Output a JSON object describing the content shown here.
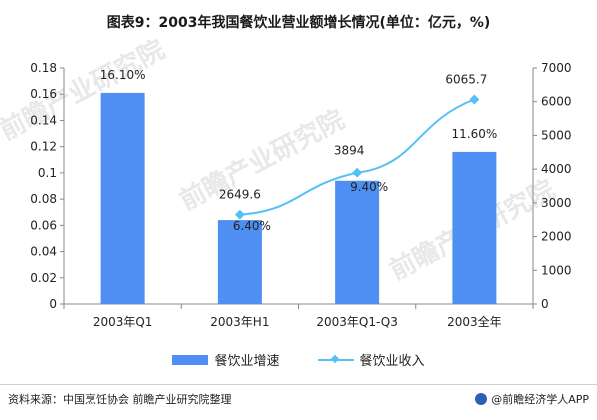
{
  "title": "图表9：2003年我国餐饮业营业额增长情况(单位：亿元，%)",
  "watermarks": [
    "前瞻产业研究院",
    "前瞻产业研究院",
    "前瞻产业研究院"
  ],
  "chart_data": {
    "type": "bar",
    "categories": [
      "2003年Q1",
      "2003年H1",
      "2003年Q1-Q3",
      "2003全年"
    ],
    "series": [
      {
        "name": "餐饮业增速",
        "type": "bar",
        "axis": "left",
        "values": [
          0.161,
          0.064,
          0.094,
          0.116
        ],
        "labels": [
          "16.10%",
          "6.40%",
          "9.40%",
          "11.60%"
        ],
        "color": "#4f8ff4"
      },
      {
        "name": "餐饮业收入",
        "type": "line",
        "axis": "right",
        "values": [
          null,
          2649.6,
          3894,
          6065.7
        ],
        "labels": [
          "",
          "2649.6",
          "3894",
          "6065.7"
        ],
        "color": "#54c1f5"
      }
    ],
    "left_axis": {
      "min": 0,
      "max": 0.18,
      "step": 0.02,
      "ticks": [
        "0",
        "0.02",
        "0.04",
        "0.06",
        "0.08",
        "0.1",
        "0.12",
        "0.14",
        "0.16",
        "0.18"
      ]
    },
    "right_axis": {
      "min": 0,
      "max": 7000,
      "step": 1000,
      "ticks": [
        "0",
        "1000",
        "2000",
        "3000",
        "4000",
        "5000",
        "6000",
        "7000"
      ]
    },
    "grid": false,
    "legend_position": "bottom"
  },
  "footer": {
    "source": "资料来源：中国烹饪协会 前瞻产业研究院整理",
    "brand": "@前瞻经济学人APP"
  }
}
